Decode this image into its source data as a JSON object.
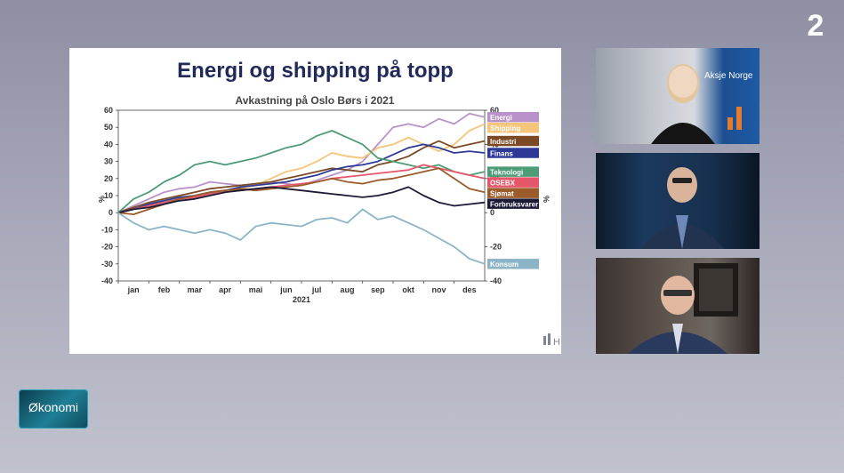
{
  "broadcaster": {
    "logo_text": "2"
  },
  "show": {
    "name": "Økonomi"
  },
  "chart_card": {
    "watermark": "H"
  },
  "video_panels": [
    {
      "sign_text": "Aksje Norge"
    },
    {},
    {}
  ],
  "colors": {
    "Energi": "#b992c9",
    "Shipping": "#f4c57a",
    "Industri": "#7b4a25",
    "Finans": "#2c3a96",
    "Teknologi": "#4e9b78",
    "OSEBX": "#e5566b",
    "Sjømat": "#9b5b2a",
    "Forbruksvarer": "#1d1a35",
    "Konsum": "#8bb4c6"
  },
  "chart_data": {
    "type": "line",
    "title": "Energi og shipping på topp",
    "subtitle": "Avkastning på Oslo Børs i 2021",
    "ylabel": "%",
    "ylabel_right": "%",
    "xlabel": "2021",
    "ylim": [
      -40,
      60
    ],
    "yticks": [
      60,
      50,
      40,
      30,
      20,
      10,
      0,
      -10,
      -20,
      -30,
      -40
    ],
    "yticks_right": [
      60,
      40,
      20,
      0,
      -20,
      -40
    ],
    "yticks_right_hidden": [
      "-30"
    ],
    "xlim": [
      0,
      12
    ],
    "months": [
      "jan",
      "feb",
      "mar",
      "apr",
      "mai",
      "jun",
      "jul",
      "aug",
      "sep",
      "okt",
      "nov",
      "des"
    ],
    "grid": false,
    "legend": "right",
    "series": [
      {
        "name": "Energi",
        "values": [
          [
            0,
            0
          ],
          [
            0.5,
            4
          ],
          [
            1,
            8
          ],
          [
            1.5,
            12
          ],
          [
            2,
            14
          ],
          [
            2.5,
            15
          ],
          [
            3,
            18
          ],
          [
            3.5,
            17
          ],
          [
            4,
            16
          ],
          [
            4.5,
            17
          ],
          [
            5,
            18
          ],
          [
            5.5,
            17
          ],
          [
            6,
            16
          ],
          [
            6.5,
            19
          ],
          [
            7,
            22
          ],
          [
            7.5,
            25
          ],
          [
            8,
            30
          ],
          [
            8.5,
            40
          ],
          [
            9,
            50
          ],
          [
            9.5,
            52
          ],
          [
            10,
            50
          ],
          [
            10.5,
            55
          ],
          [
            11,
            52
          ],
          [
            11.5,
            58
          ],
          [
            12,
            56
          ]
        ]
      },
      {
        "name": "Shipping",
        "values": [
          [
            0,
            0
          ],
          [
            0.5,
            2
          ],
          [
            1,
            5
          ],
          [
            1.5,
            6
          ],
          [
            2,
            8
          ],
          [
            2.5,
            9
          ],
          [
            3,
            11
          ],
          [
            3.5,
            13
          ],
          [
            4,
            14
          ],
          [
            4.5,
            16
          ],
          [
            5,
            20
          ],
          [
            5.5,
            24
          ],
          [
            6,
            26
          ],
          [
            6.5,
            30
          ],
          [
            7,
            35
          ],
          [
            7.5,
            33
          ],
          [
            8,
            32
          ],
          [
            8.5,
            38
          ],
          [
            9,
            40
          ],
          [
            9.5,
            44
          ],
          [
            10,
            40
          ],
          [
            10.5,
            36
          ],
          [
            11,
            40
          ],
          [
            11.5,
            48
          ],
          [
            12,
            52
          ]
        ]
      },
      {
        "name": "Industri",
        "values": [
          [
            0,
            0
          ],
          [
            0.5,
            3
          ],
          [
            1,
            6
          ],
          [
            1.5,
            8
          ],
          [
            2,
            10
          ],
          [
            2.5,
            12
          ],
          [
            3,
            14
          ],
          [
            3.5,
            15
          ],
          [
            4,
            16
          ],
          [
            4.5,
            17
          ],
          [
            5,
            18
          ],
          [
            5.5,
            20
          ],
          [
            6,
            22
          ],
          [
            6.5,
            24
          ],
          [
            7,
            26
          ],
          [
            7.5,
            25
          ],
          [
            8,
            24
          ],
          [
            8.5,
            28
          ],
          [
            9,
            30
          ],
          [
            9.5,
            33
          ],
          [
            10,
            38
          ],
          [
            10.5,
            42
          ],
          [
            11,
            38
          ],
          [
            11.5,
            40
          ],
          [
            12,
            42
          ]
        ]
      },
      {
        "name": "Finans",
        "values": [
          [
            0,
            0
          ],
          [
            0.5,
            2
          ],
          [
            1,
            5
          ],
          [
            1.5,
            7
          ],
          [
            2,
            9
          ],
          [
            2.5,
            10
          ],
          [
            3,
            12
          ],
          [
            3.5,
            13
          ],
          [
            4,
            15
          ],
          [
            4.5,
            16
          ],
          [
            5,
            17
          ],
          [
            5.5,
            18
          ],
          [
            6,
            20
          ],
          [
            6.5,
            22
          ],
          [
            7,
            25
          ],
          [
            7.5,
            27
          ],
          [
            8,
            28
          ],
          [
            8.5,
            30
          ],
          [
            9,
            34
          ],
          [
            9.5,
            38
          ],
          [
            10,
            40
          ],
          [
            10.5,
            38
          ],
          [
            11,
            35
          ],
          [
            11.5,
            36
          ],
          [
            12,
            35
          ]
        ]
      },
      {
        "name": "Teknologi",
        "values": [
          [
            0,
            0
          ],
          [
            0.5,
            8
          ],
          [
            1,
            12
          ],
          [
            1.5,
            18
          ],
          [
            2,
            22
          ],
          [
            2.5,
            28
          ],
          [
            3,
            30
          ],
          [
            3.5,
            28
          ],
          [
            4,
            30
          ],
          [
            4.5,
            32
          ],
          [
            5,
            35
          ],
          [
            5.5,
            38
          ],
          [
            6,
            40
          ],
          [
            6.5,
            45
          ],
          [
            7,
            48
          ],
          [
            7.5,
            44
          ],
          [
            8,
            40
          ],
          [
            8.5,
            32
          ],
          [
            9,
            30
          ],
          [
            9.5,
            28
          ],
          [
            10,
            26
          ],
          [
            10.5,
            28
          ],
          [
            11,
            24
          ],
          [
            11.5,
            22
          ],
          [
            12,
            24
          ]
        ]
      },
      {
        "name": "OSEBX",
        "values": [
          [
            0,
            0
          ],
          [
            0.5,
            2
          ],
          [
            1,
            4
          ],
          [
            1.5,
            6
          ],
          [
            2,
            8
          ],
          [
            2.5,
            9
          ],
          [
            3,
            11
          ],
          [
            3.5,
            12
          ],
          [
            4,
            13
          ],
          [
            4.5,
            14
          ],
          [
            5,
            15
          ],
          [
            5.5,
            16
          ],
          [
            6,
            17
          ],
          [
            6.5,
            18
          ],
          [
            7,
            20
          ],
          [
            7.5,
            21
          ],
          [
            8,
            22
          ],
          [
            8.5,
            23
          ],
          [
            9,
            24
          ],
          [
            9.5,
            25
          ],
          [
            10,
            28
          ],
          [
            10.5,
            26
          ],
          [
            11,
            24
          ],
          [
            11.5,
            22
          ],
          [
            12,
            20
          ]
        ]
      },
      {
        "name": "Sjømat",
        "values": [
          [
            0,
            0
          ],
          [
            0.5,
            -1
          ],
          [
            1,
            2
          ],
          [
            1.5,
            5
          ],
          [
            2,
            8
          ],
          [
            2.5,
            10
          ],
          [
            3,
            12
          ],
          [
            3.5,
            13
          ],
          [
            4,
            14
          ],
          [
            4.5,
            13
          ],
          [
            5,
            14
          ],
          [
            5.5,
            15
          ],
          [
            6,
            16
          ],
          [
            6.5,
            18
          ],
          [
            7,
            20
          ],
          [
            7.5,
            18
          ],
          [
            8,
            17
          ],
          [
            8.5,
            19
          ],
          [
            9,
            20
          ],
          [
            9.5,
            22
          ],
          [
            10,
            24
          ],
          [
            10.5,
            26
          ],
          [
            11,
            20
          ],
          [
            11.5,
            14
          ],
          [
            12,
            12
          ]
        ]
      },
      {
        "name": "Forbruksvarer",
        "values": [
          [
            0,
            0
          ],
          [
            0.5,
            2
          ],
          [
            1,
            3
          ],
          [
            1.5,
            5
          ],
          [
            2,
            7
          ],
          [
            2.5,
            8
          ],
          [
            3,
            10
          ],
          [
            3.5,
            12
          ],
          [
            4,
            13
          ],
          [
            4.5,
            14
          ],
          [
            5,
            15
          ],
          [
            5.5,
            14
          ],
          [
            6,
            13
          ],
          [
            6.5,
            12
          ],
          [
            7,
            11
          ],
          [
            7.5,
            10
          ],
          [
            8,
            9
          ],
          [
            8.5,
            10
          ],
          [
            9,
            12
          ],
          [
            9.5,
            15
          ],
          [
            10,
            10
          ],
          [
            10.5,
            6
          ],
          [
            11,
            4
          ],
          [
            11.5,
            5
          ],
          [
            12,
            6
          ]
        ]
      },
      {
        "name": "Konsum",
        "values": [
          [
            0,
            0
          ],
          [
            0.5,
            -6
          ],
          [
            1,
            -10
          ],
          [
            1.5,
            -8
          ],
          [
            2,
            -10
          ],
          [
            2.5,
            -12
          ],
          [
            3,
            -10
          ],
          [
            3.5,
            -12
          ],
          [
            4,
            -16
          ],
          [
            4.5,
            -8
          ],
          [
            5,
            -6
          ],
          [
            5.5,
            -7
          ],
          [
            6,
            -8
          ],
          [
            6.5,
            -4
          ],
          [
            7,
            -3
          ],
          [
            7.5,
            -6
          ],
          [
            8,
            2
          ],
          [
            8.5,
            -4
          ],
          [
            9,
            -2
          ],
          [
            9.5,
            -6
          ],
          [
            10,
            -10
          ],
          [
            10.5,
            -15
          ],
          [
            11,
            -20
          ],
          [
            11.5,
            -27
          ],
          [
            12,
            -30
          ]
        ]
      }
    ]
  }
}
